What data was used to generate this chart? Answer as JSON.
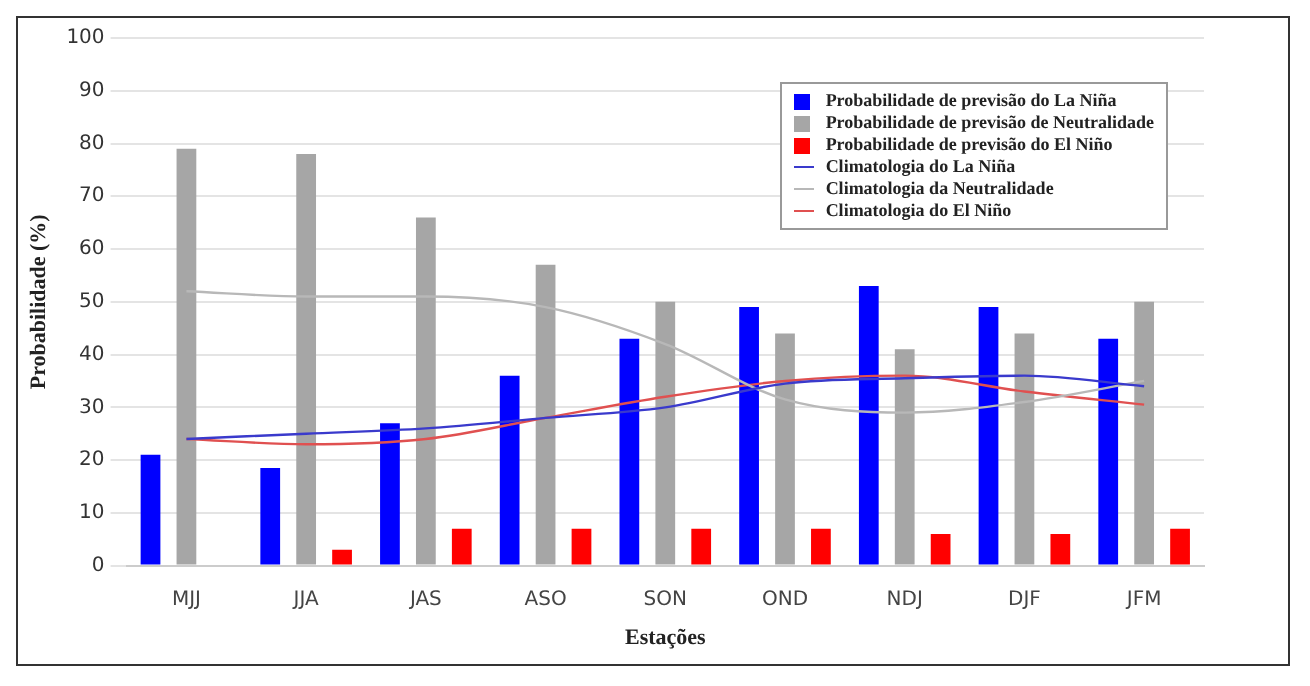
{
  "chart_data": {
    "type": "bar",
    "xlabel": "Estações",
    "ylabel": "Probabilidade (%)",
    "categories": [
      "MJJ",
      "JJA",
      "JAS",
      "ASO",
      "SON",
      "OND",
      "NDJ",
      "DJF",
      "JFM"
    ],
    "series": [
      {
        "name": "Probabilidade de previsão do La Niña",
        "color": "#0000ff",
        "values": [
          21,
          18.5,
          27,
          36,
          43,
          49,
          53,
          49,
          43
        ]
      },
      {
        "name": "Probabilidade de previsão de Neutralidade",
        "color": "#a6a6a6",
        "values": [
          79,
          78,
          66,
          57,
          50,
          44,
          41,
          44,
          50
        ]
      },
      {
        "name": "Probabilidade de previsão do El Niño",
        "color": "#ff0000",
        "values": [
          0,
          3,
          7,
          7,
          7,
          7,
          6,
          6,
          7
        ]
      },
      {
        "name": "Climatologia do La Niña",
        "type": "line",
        "color": "#3a3acc",
        "values": [
          24,
          25,
          26,
          28,
          30,
          34.5,
          35.5,
          36,
          34
        ]
      },
      {
        "name": "Climatologia da Neutralidade",
        "type": "line",
        "color": "#b8b8b8",
        "values": [
          52,
          51,
          51,
          49,
          42,
          31.5,
          29,
          31,
          35
        ]
      },
      {
        "name": "Climatologia do El Niño",
        "type": "line",
        "color": "#e05050",
        "values": [
          24,
          23,
          24,
          28,
          32,
          35,
          36,
          33,
          30.5
        ]
      }
    ],
    "ylim": [
      0,
      100
    ],
    "yticks": [
      0,
      10,
      20,
      30,
      40,
      50,
      60,
      70,
      80,
      90,
      100
    ],
    "grid": "y",
    "legend": "top right",
    "marker": "none"
  }
}
